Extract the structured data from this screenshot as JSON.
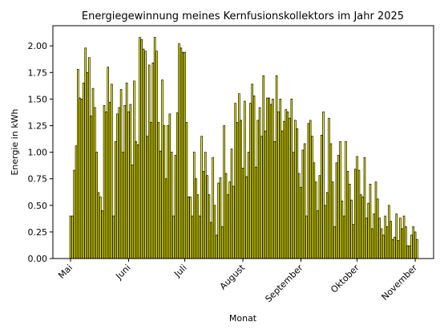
{
  "chart_data": {
    "type": "bar",
    "title": "Energiegewinnung meines Kernfusionskollektors im Jahr 2025",
    "x_label": "Monat",
    "y_label": "Energie in kWh",
    "color": "#ffff00",
    "edgecolor": "#000000",
    "values": [
      0.4,
      0.4,
      0.83,
      1.06,
      1.78,
      1.51,
      1.5,
      1.65,
      1.98,
      1.75,
      1.89,
      1.34,
      1.6,
      1.42,
      1.0,
      0.62,
      0.58,
      0.45,
      1.44,
      1.38,
      1.8,
      1.47,
      1.64,
      0.4,
      1.1,
      1.36,
      1.42,
      1.59,
      1.0,
      1.44,
      1.65,
      1.38,
      1.45,
      0.88,
      1.67,
      1.1,
      1.07,
      2.08,
      2.06,
      1.97,
      1.95,
      1.15,
      1.82,
      1.28,
      1.84,
      2.08,
      1.95,
      1.28,
      1.01,
      1.68,
      1.25,
      0.75,
      1.25,
      1.36,
      1.0,
      0.4,
      0.97,
      1.37,
      2.02,
      1.98,
      1.94,
      1.94,
      1.28,
      0.58,
      0.58,
      0.4,
      1.0,
      0.75,
      0.6,
      0.4,
      1.15,
      0.82,
      1.0,
      0.78,
      0.6,
      0.34,
      0.95,
      0.5,
      0.22,
      0.71,
      0.76,
      0.3,
      1.25,
      0.8,
      0.6,
      0.72,
      1.03,
      0.68,
      1.46,
      1.28,
      1.55,
      1.3,
      0.85,
      1.48,
      0.77,
      1.0,
      1.46,
      1.64,
      1.53,
      0.86,
      1.3,
      1.42,
      1.15,
      1.72,
      1.2,
      1.51,
      1.51,
      1.45,
      1.5,
      1.1,
      1.72,
      1.38,
      1.5,
      1.2,
      1.29,
      1.4,
      1.38,
      1.32,
      1.5,
      1.0,
      1.3,
      1.22,
      0.8,
      0.67,
      1.02,
      1.08,
      0.4,
      1.27,
      1.3,
      1.15,
      0.9,
      0.72,
      0.45,
      0.78,
      1.16,
      1.38,
      0.5,
      0.62,
      1.32,
      1.08,
      0.72,
      0.3,
      0.9,
      0.97,
      1.1,
      0.54,
      0.4,
      1.1,
      0.82,
      0.7,
      0.55,
      0.32,
      0.84,
      0.96,
      0.83,
      0.6,
      0.58,
      0.95,
      0.38,
      0.52,
      0.7,
      0.28,
      0.42,
      0.72,
      0.56,
      0.38,
      0.28,
      0.22,
      0.4,
      0.3,
      0.5,
      0.35,
      0.18,
      0.2,
      0.42,
      0.17,
      0.38,
      0.28,
      0.4,
      0.3,
      0.12,
      0.12,
      0.22,
      0.3,
      0.25,
      0.18
    ],
    "xlim": [
      -9.4,
      193.8
    ],
    "xticks": [
      {
        "value": 0,
        "label": "Mai"
      },
      {
        "value": 31,
        "label": "Juni"
      },
      {
        "value": 61,
        "label": "Juli"
      },
      {
        "value": 92,
        "label": "August"
      },
      {
        "value": 123,
        "label": "September"
      },
      {
        "value": 153,
        "label": "Oktober"
      },
      {
        "value": 184,
        "label": "November"
      }
    ],
    "ylim": [
      0,
      2.19
    ],
    "yticks": [
      {
        "value": 0,
        "label": "0.00"
      },
      {
        "value": 0.25,
        "label": "0.25"
      },
      {
        "value": 0.5,
        "label": "0.50"
      },
      {
        "value": 0.75,
        "label": "0.75"
      },
      {
        "value": 1,
        "label": "1.00"
      },
      {
        "value": 1.25,
        "label": "1.25"
      },
      {
        "value": 1.5,
        "label": "1.50"
      },
      {
        "value": 1.75,
        "label": "1.75"
      },
      {
        "value": 2,
        "label": "2.00"
      }
    ]
  }
}
